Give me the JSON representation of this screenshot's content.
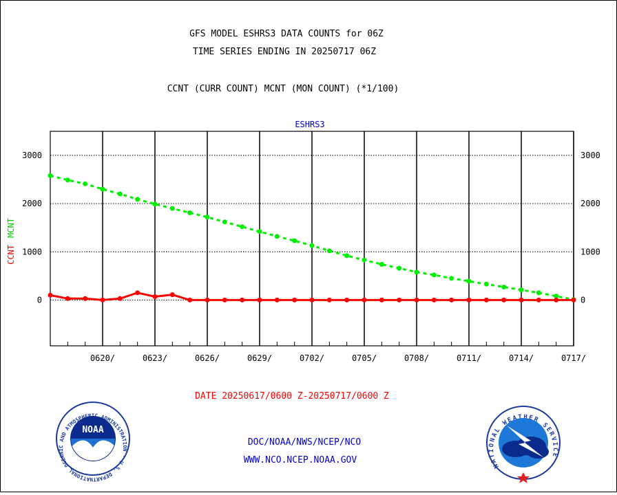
{
  "header": {
    "title_line1": "GFS MODEL ESHRS3 DATA COUNTS for 06Z",
    "title_line2": "TIME SERIES ENDING IN 20250717 06Z",
    "subtitle": "CCNT (CURR COUNT) MCNT (MON COUNT) (*1/100)"
  },
  "footer": {
    "date_range": "DATE 20250617/0600 Z-20250717/0600 Z",
    "org_line": "DOC/NOAA/NWS/NCEP/NCO",
    "url_line": "WWW.NCO.NCEP.NOAA.GOV"
  },
  "logos": {
    "noaa_text": "NOAA",
    "noaa_ring": "NATIONAL OCEANIC AND ATMOSPHERIC ADMINISTRATION · U.S. DEPARTMENT OF COMMERCE ·",
    "nws_ring": "NATIONAL WEATHER SERVICE"
  },
  "colors": {
    "ccnt": "#ff0000",
    "mcnt": "#00ee00",
    "title": "#000000",
    "panel_label": "#0000cc",
    "date_label": "#ff0000",
    "org_text": "#0000cc"
  },
  "chart_data": {
    "type": "line",
    "panel_label": "ESHRS3",
    "ylabel_ccnt": "CCNT",
    "ylabel_mcnt": "MCNT",
    "xlabel": "",
    "x_start": "2025-06-17",
    "x_end": "2025-07-17",
    "xticks": [
      "0620/",
      "0623/",
      "0626/",
      "0629/",
      "0702/",
      "0705/",
      "0708/",
      "0711/",
      "0714/",
      "0717/"
    ],
    "yticks": [
      0,
      1000,
      2000,
      3000
    ],
    "ylim": [
      -950,
      3500
    ],
    "grid": true,
    "x": [
      "2025-06-17",
      "2025-06-18",
      "2025-06-19",
      "2025-06-20",
      "2025-06-21",
      "2025-06-22",
      "2025-06-23",
      "2025-06-24",
      "2025-06-25",
      "2025-06-26",
      "2025-06-27",
      "2025-06-28",
      "2025-06-29",
      "2025-06-30",
      "2025-07-01",
      "2025-07-02",
      "2025-07-03",
      "2025-07-04",
      "2025-07-05",
      "2025-07-06",
      "2025-07-07",
      "2025-07-08",
      "2025-07-09",
      "2025-07-10",
      "2025-07-11",
      "2025-07-12",
      "2025-07-13",
      "2025-07-14",
      "2025-07-15",
      "2025-07-16",
      "2025-07-17"
    ],
    "series": [
      {
        "name": "MCNT",
        "style": "dashed",
        "color": "#00ee00",
        "values": [
          2580,
          2490,
          2410,
          2300,
          2200,
          2090,
          1990,
          1900,
          1810,
          1720,
          1620,
          1520,
          1420,
          1320,
          1230,
          1130,
          1020,
          920,
          830,
          740,
          660,
          580,
          520,
          450,
          390,
          330,
          270,
          210,
          150,
          80,
          10
        ]
      },
      {
        "name": "CCNT",
        "style": "solid",
        "color": "#ff0000",
        "values": [
          100,
          30,
          30,
          0,
          30,
          150,
          70,
          110,
          0,
          0,
          0,
          0,
          0,
          0,
          0,
          0,
          0,
          0,
          0,
          0,
          0,
          0,
          0,
          0,
          0,
          0,
          0,
          0,
          0,
          0,
          0
        ]
      }
    ]
  }
}
